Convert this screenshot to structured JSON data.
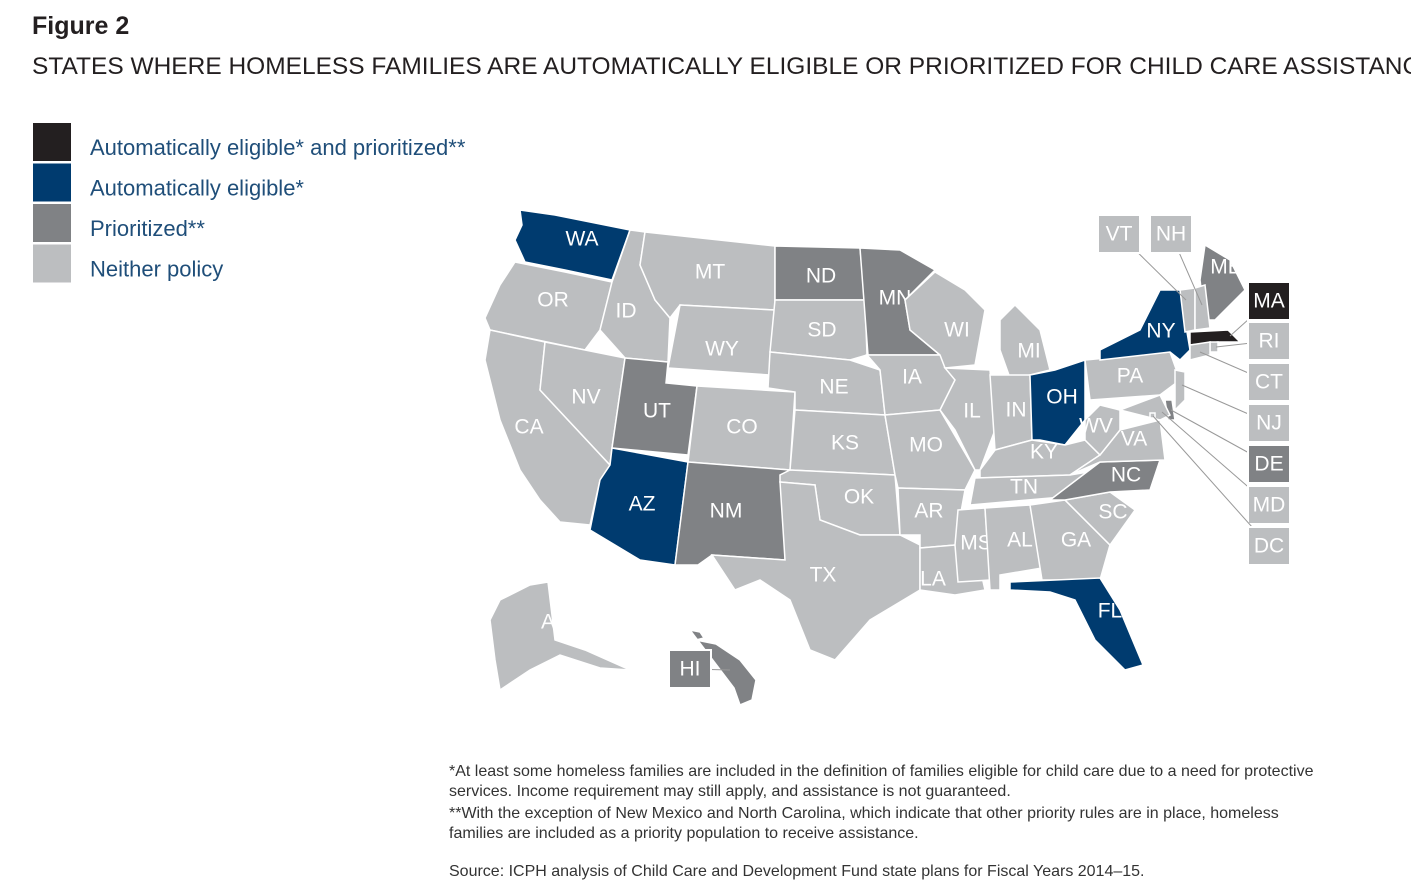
{
  "header": {
    "figure": "Figure 2",
    "title": "STATES WHERE HOMELESS FAMILIES ARE AUTOMATICALLY ELIGIBLE OR PRIORITIZED FOR CHILD CARE ASSISTANCE"
  },
  "legend": [
    {
      "label": "Automatically eligible* and prioritized**",
      "color": "#231f20",
      "states": [
        "MA"
      ]
    },
    {
      "label": "Automatically eligible*",
      "color": "#003b6f",
      "states": [
        "WA",
        "AZ",
        "NY",
        "OH",
        "FL"
      ]
    },
    {
      "label": "Prioritized**",
      "color": "#808285",
      "states": [
        "ND",
        "MN",
        "UT",
        "NM",
        "NC",
        "ME",
        "DE",
        "HI"
      ]
    },
    {
      "label": "Neither policy",
      "color": "#bcbec0",
      "states": [
        "OR",
        "CA",
        "NV",
        "ID",
        "MT",
        "WY",
        "CO",
        "SD",
        "NE",
        "KS",
        "OK",
        "TX",
        "IA",
        "MO",
        "AR",
        "LA",
        "WI",
        "IL",
        "MI",
        "IN",
        "KY",
        "TN",
        "MS",
        "AL",
        "GA",
        "SC",
        "VA",
        "WV",
        "PA",
        "VT",
        "NH",
        "RI",
        "CT",
        "NJ",
        "MD",
        "DC",
        "AK"
      ]
    }
  ],
  "notes": [
    "*At least some homeless families are included in the definition of families eligible for child care due to a need for protective services. Income requirement may still apply, and assistance is not guaranteed.",
    "**With the exception of New Mexico and North Carolina, which indicate that other priority rules are in place, homeless families are included as a priority population to receive assistance."
  ],
  "source": "Source: ICPH analysis of Child Care and Development Fund state plans for Fiscal Years 2014–15."
}
